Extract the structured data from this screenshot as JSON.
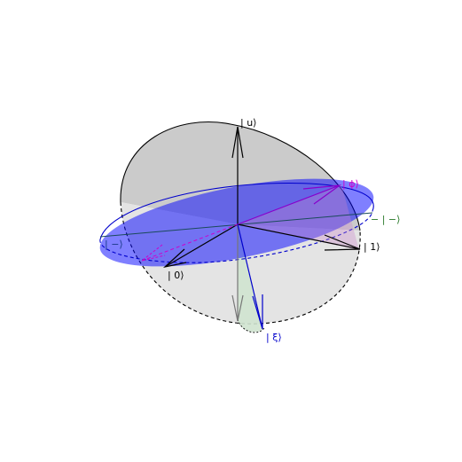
{
  "labels": {
    "u": "| u⟩",
    "phi": "| ϕ⟩",
    "minus_green": "− | −⟩",
    "one": "| 1⟩",
    "minus_blue": "| −⟩",
    "zero": "| 0⟩",
    "xi": "| ξ⟩"
  },
  "colors": {
    "background": "#ffffff",
    "sphere_fill": "#c8c8c8",
    "equator_plane": "#0000ff",
    "axis": "#000000",
    "phi": "#cc00cc",
    "xi": "#0000cc",
    "minus_green": "#2a7a2a",
    "minus_blue": "#1a3a8a",
    "xi_cone": "#cfe3cf",
    "gray_arrow": "#777777"
  }
}
